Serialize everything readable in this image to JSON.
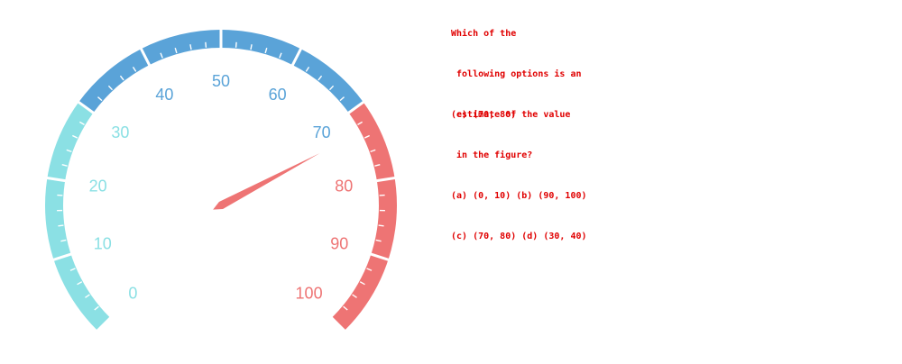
{
  "chart_data": {
    "type": "gauge",
    "min": 0,
    "max": 100,
    "value": 73,
    "major_ticks": [
      0,
      10,
      20,
      30,
      40,
      50,
      60,
      70,
      80,
      90,
      100
    ],
    "tick_labels": [
      "0",
      "10",
      "20",
      "30",
      "40",
      "50",
      "60",
      "70",
      "80",
      "90",
      "100"
    ],
    "bands": [
      {
        "from": 0,
        "to": 30,
        "color": "#8be0e4"
      },
      {
        "from": 30,
        "to": 70,
        "color": "#5aa3d8"
      },
      {
        "from": 70,
        "to": 100,
        "color": "#ee7474"
      }
    ],
    "pointer_color": "#ee7474"
  },
  "question": {
    "lines": [
      "Which of the",
      " following options is an",
      " estimate of the value",
      " in the figure?",
      "(a) (0, 10) (b) (90, 100)",
      "(c) (70, 80) (d) (30, 40)"
    ],
    "answer": "(c) (70, 80)",
    "color": "#e00000"
  }
}
